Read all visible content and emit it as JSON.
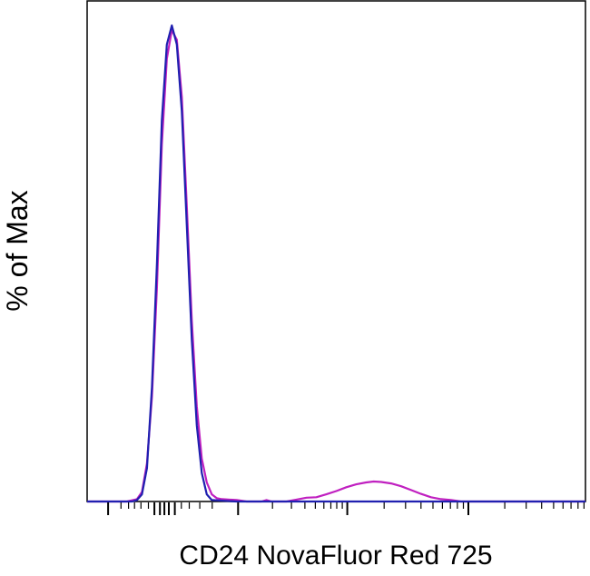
{
  "chart_data": {
    "type": "line",
    "title": "",
    "xlabel": "CD24 NovaFluor Red 725",
    "ylabel": "% of Max",
    "x_scale": "biexponential (unlabeled ticks)",
    "xlim": [
      0,
      100
    ],
    "ylim": [
      0,
      100
    ],
    "grid": false,
    "legend": "none",
    "series": [
      {
        "color": "#c020c0",
        "x": [
          0,
          5,
          8,
          10,
          11,
          12,
          13,
          14,
          15,
          16,
          17,
          18,
          19,
          20,
          21,
          22,
          23,
          24,
          25,
          26,
          27,
          30,
          32,
          35,
          36,
          37,
          40,
          42,
          44,
          46,
          48,
          50,
          52,
          54,
          56,
          57.5,
          59,
          61,
          63,
          65,
          67,
          69,
          71,
          73,
          75,
          100
        ],
        "y": [
          0,
          0,
          0,
          0.5,
          2,
          8,
          22,
          45,
          75,
          93,
          99,
          97,
          85,
          62,
          38,
          20,
          9,
          4,
          1.5,
          0.7,
          0.5,
          0.3,
          0,
          0,
          0.3,
          0,
          0,
          0.4,
          0.8,
          0.9,
          1.5,
          2.2,
          3.0,
          3.6,
          4.0,
          4.2,
          4.1,
          3.8,
          3.2,
          2.4,
          1.6,
          0.9,
          0.5,
          0.3,
          0,
          0
        ]
      },
      {
        "color": "#2020b0",
        "x": [
          0,
          5,
          9,
          10,
          11,
          12,
          13,
          14,
          15,
          16,
          17,
          18,
          19,
          20,
          21,
          22,
          23,
          24,
          25,
          30,
          100
        ],
        "y": [
          0,
          0,
          0,
          0.3,
          1.5,
          7,
          24,
          50,
          80,
          96,
          100,
          96,
          82,
          58,
          34,
          16,
          6,
          1.5,
          0.3,
          0,
          0
        ]
      }
    ],
    "x_ticks": [
      {
        "pos": 4.2,
        "major": true
      },
      {
        "pos": 6.8,
        "major": false
      },
      {
        "pos": 8.3,
        "major": false
      },
      {
        "pos": 9.5,
        "major": false
      },
      {
        "pos": 10.8,
        "major": false
      },
      {
        "pos": 12.3,
        "major": false
      },
      {
        "pos": 13.5,
        "major": true
      },
      {
        "pos": 14.6,
        "major": true
      },
      {
        "pos": 15.5,
        "major": true
      },
      {
        "pos": 16.4,
        "major": true
      },
      {
        "pos": 17.6,
        "major": true
      },
      {
        "pos": 18.9,
        "major": false
      },
      {
        "pos": 20.5,
        "major": false
      },
      {
        "pos": 22.6,
        "major": false
      },
      {
        "pos": 25.1,
        "major": false
      },
      {
        "pos": 30.3,
        "major": true
      },
      {
        "pos": 37.2,
        "major": false
      },
      {
        "pos": 41.0,
        "major": false
      },
      {
        "pos": 43.7,
        "major": false
      },
      {
        "pos": 45.8,
        "major": false
      },
      {
        "pos": 47.5,
        "major": false
      },
      {
        "pos": 48.9,
        "major": false
      },
      {
        "pos": 50.1,
        "major": false
      },
      {
        "pos": 51.2,
        "major": false
      },
      {
        "pos": 52.2,
        "major": true
      },
      {
        "pos": 59.6,
        "major": false
      },
      {
        "pos": 63.9,
        "major": false
      },
      {
        "pos": 67.0,
        "major": false
      },
      {
        "pos": 69.4,
        "major": false
      },
      {
        "pos": 71.3,
        "major": false
      },
      {
        "pos": 72.9,
        "major": false
      },
      {
        "pos": 74.3,
        "major": false
      },
      {
        "pos": 75.5,
        "major": false
      },
      {
        "pos": 76.5,
        "major": true
      },
      {
        "pos": 83.8,
        "major": false
      },
      {
        "pos": 88.1,
        "major": false
      },
      {
        "pos": 91.2,
        "major": false
      },
      {
        "pos": 93.6,
        "major": false
      },
      {
        "pos": 95.5,
        "major": false
      },
      {
        "pos": 97.1,
        "major": false
      },
      {
        "pos": 98.5,
        "major": false
      },
      {
        "pos": 99.7,
        "major": false
      }
    ]
  }
}
